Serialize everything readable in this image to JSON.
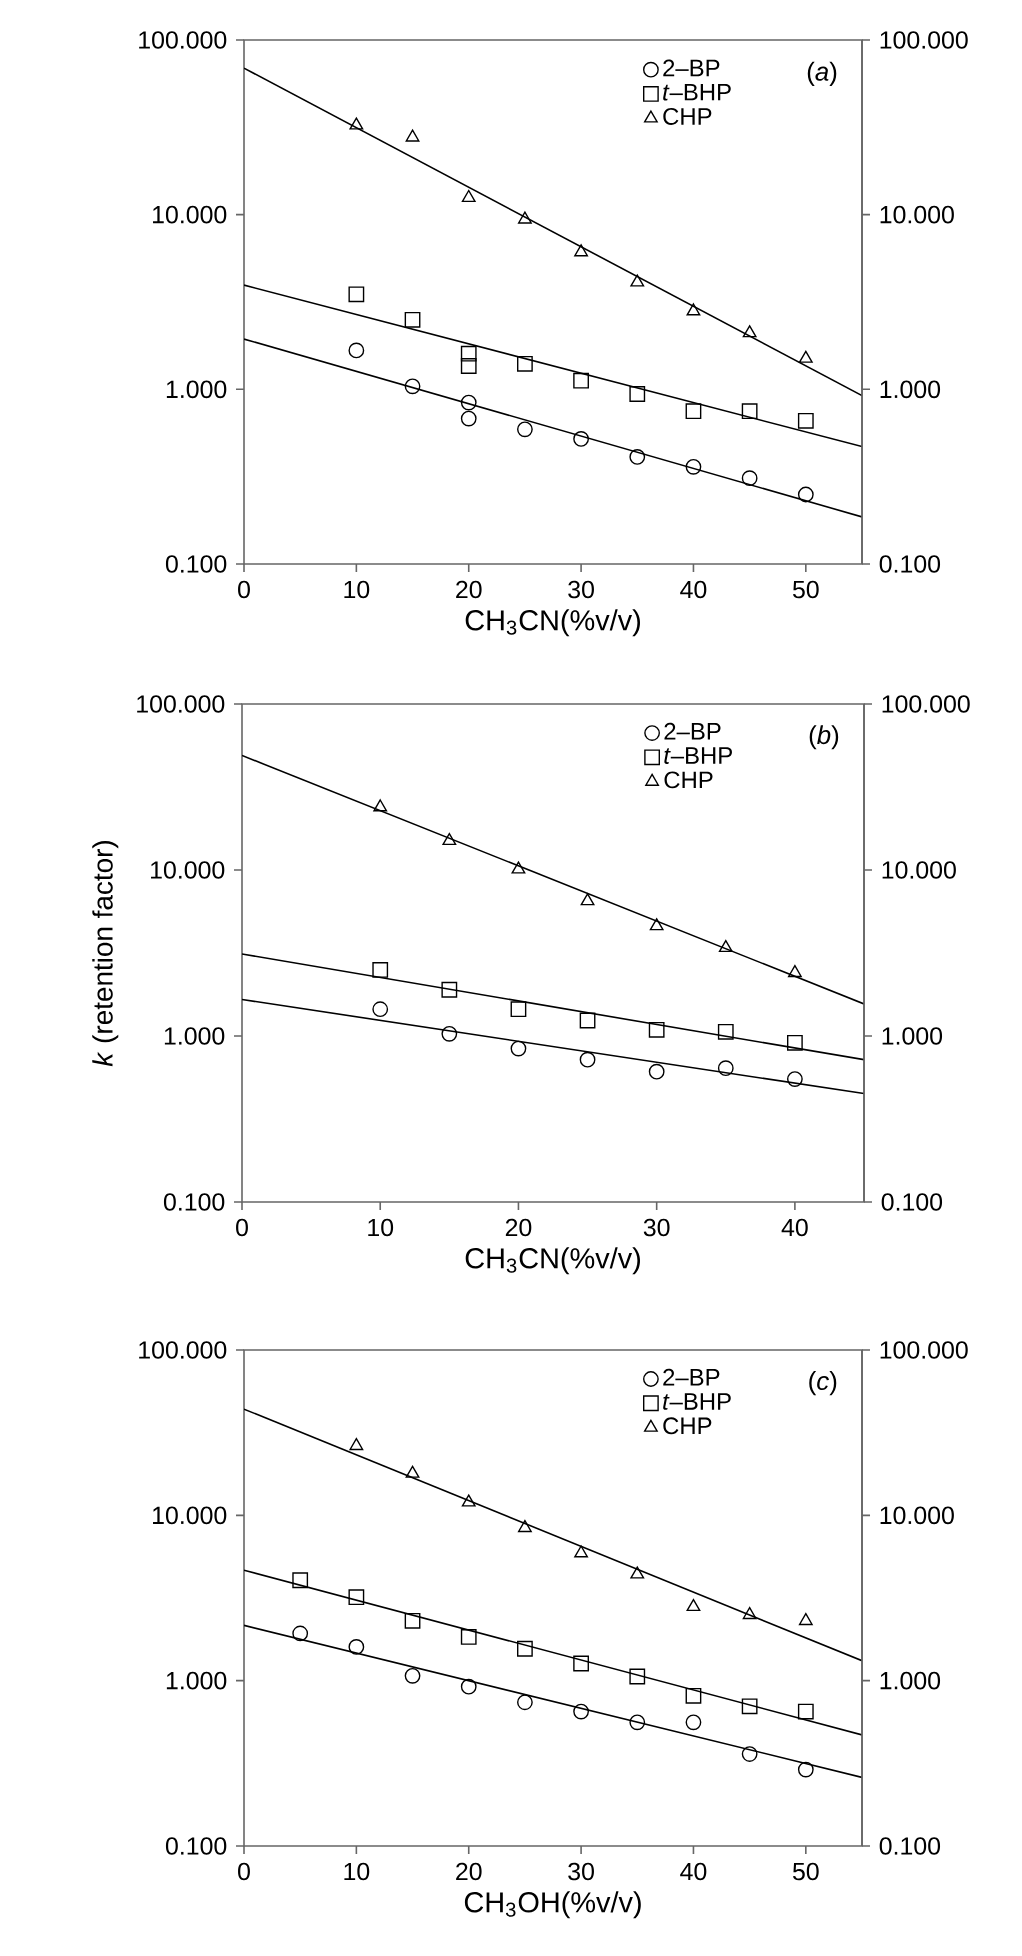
{
  "chart_data": [
    {
      "type": "scatter",
      "xlabel": "CH$_{3}$CN(%v/v)",
      "annotations": [
        "(*a*)"
      ],
      "log": true,
      "legend": "top right",
      "xlim": [
        0,
        55
      ],
      "xticks": [
        0,
        10,
        20,
        30,
        40,
        50
      ],
      "ylim": [
        0.1,
        100
      ],
      "yticks": [
        {
          "value": 0.1,
          "label": "0.100"
        },
        {
          "value": 1,
          "label": "1.000"
        },
        {
          "value": 10,
          "label": "10.000"
        },
        {
          "value": 100,
          "label": "100.000"
        }
      ],
      "series": [
        {
          "name": "2–BP",
          "color": "#000000",
          "marker": "circle",
          "x": [
            10,
            15,
            20,
            20,
            25,
            30,
            35,
            40,
            45,
            50
          ],
          "values": [
            1.67,
            1.04,
            0.84,
            0.68,
            0.59,
            0.52,
            0.41,
            0.36,
            0.31,
            0.25
          ]
        },
        {
          "name": "*t*–BHP",
          "color": "#000000",
          "marker": "square",
          "x": [
            10,
            15,
            20,
            20,
            25,
            30,
            35,
            40,
            45,
            50
          ],
          "values": [
            3.5,
            2.5,
            1.6,
            1.36,
            1.4,
            1.12,
            0.94,
            0.75,
            0.75,
            0.66
          ]
        },
        {
          "name": "CHP",
          "color": "#000000",
          "marker": "triangle",
          "x": [
            10,
            15,
            20,
            25,
            30,
            35,
            40,
            45,
            50
          ],
          "values": [
            32.5,
            27.7,
            12.5,
            9.4,
            6.1,
            4.1,
            2.8,
            2.1,
            1.5
          ]
        },
        {
          "type": "line",
          "color": "#000000",
          "marker": "none",
          "x": [
            0,
            55
          ],
          "values": [
            1.94,
            0.186
          ]
        },
        {
          "type": "line",
          "color": "#000000",
          "marker": "none",
          "x": [
            0,
            55
          ],
          "values": [
            3.95,
            0.47
          ]
        },
        {
          "type": "line",
          "color": "#000000",
          "marker": "none",
          "x": [
            0,
            55
          ],
          "values": [
            69,
            0.92
          ]
        }
      ]
    },
    {
      "type": "scatter",
      "xlabel": "CH$_{3}$CN(%v/v)",
      "ylabel": "*k* (retention factor)",
      "annotations": [
        "(*b*)"
      ],
      "log": true,
      "legend": "top right",
      "xlim": [
        0,
        45
      ],
      "xticks": [
        0,
        10,
        20,
        30,
        40
      ],
      "ylim": [
        0.1,
        100
      ],
      "yticks": [
        {
          "value": 0.1,
          "label": "0.100"
        },
        {
          "value": 1,
          "label": "1.000"
        },
        {
          "value": 10,
          "label": "10.000"
        },
        {
          "value": 100,
          "label": "100.000"
        }
      ],
      "series": [
        {
          "name": "2–BP",
          "color": "#000000",
          "marker": "circle",
          "x": [
            10,
            15,
            20,
            25,
            30,
            35,
            40
          ],
          "values": [
            1.45,
            1.03,
            0.84,
            0.72,
            0.61,
            0.64,
            0.55
          ]
        },
        {
          "name": "*t*–BHP",
          "color": "#000000",
          "marker": "square",
          "x": [
            10,
            15,
            20,
            25,
            30,
            35,
            40
          ],
          "values": [
            2.5,
            1.9,
            1.45,
            1.24,
            1.09,
            1.06,
            0.91
          ]
        },
        {
          "name": "CHP",
          "color": "#000000",
          "marker": "triangle",
          "x": [
            10,
            15,
            20,
            25,
            30,
            35,
            40
          ],
          "values": [
            23.9,
            15,
            10.1,
            6.5,
            4.6,
            3.4,
            2.4
          ]
        },
        {
          "type": "line",
          "color": "#000000",
          "marker": "none",
          "x": [
            0,
            45
          ],
          "values": [
            1.66,
            0.45
          ]
        },
        {
          "type": "line",
          "color": "#000000",
          "marker": "none",
          "x": [
            0,
            45
          ],
          "values": [
            3.12,
            0.72
          ]
        },
        {
          "type": "line",
          "color": "#000000",
          "marker": "none",
          "x": [
            0,
            45
          ],
          "values": [
            49,
            1.56
          ]
        }
      ]
    },
    {
      "type": "scatter",
      "xlabel": "CH$_{3}$OH(%v/v)",
      "annotations": [
        "(*c*)"
      ],
      "log": true,
      "legend": "top right",
      "xlim": [
        0,
        55
      ],
      "xticks": [
        0,
        10,
        20,
        30,
        40,
        50
      ],
      "ylim": [
        0.1,
        100
      ],
      "yticks": [
        {
          "value": 0.1,
          "label": "0.100"
        },
        {
          "value": 1,
          "label": "1.000"
        },
        {
          "value": 10,
          "label": "10.000"
        },
        {
          "value": 100,
          "label": "100.000"
        }
      ],
      "series": [
        {
          "name": "2–BP",
          "color": "#000000",
          "marker": "circle",
          "x": [
            5,
            10,
            15,
            20,
            25,
            30,
            35,
            40,
            45,
            50
          ],
          "values": [
            1.93,
            1.6,
            1.07,
            0.92,
            0.74,
            0.65,
            0.56,
            0.56,
            0.36,
            0.29
          ]
        },
        {
          "name": "*t*–BHP",
          "color": "#000000",
          "marker": "square",
          "x": [
            5,
            10,
            15,
            20,
            25,
            30,
            35,
            40,
            45,
            50
          ],
          "values": [
            4.05,
            3.2,
            2.3,
            1.84,
            1.56,
            1.27,
            1.06,
            0.81,
            0.7,
            0.65
          ]
        },
        {
          "name": "CHP",
          "color": "#000000",
          "marker": "triangle",
          "x": [
            10,
            15,
            20,
            25,
            30,
            35,
            40,
            45,
            50
          ],
          "values": [
            26.3,
            17.9,
            12,
            8.4,
            5.9,
            4.4,
            2.8,
            2.5,
            2.3
          ]
        },
        {
          "type": "line",
          "color": "#000000",
          "marker": "none",
          "x": [
            0,
            55
          ],
          "values": [
            2.16,
            0.26
          ]
        },
        {
          "type": "line",
          "color": "#000000",
          "marker": "none",
          "x": [
            0,
            55
          ],
          "values": [
            4.66,
            0.47
          ]
        },
        {
          "type": "line",
          "color": "#000000",
          "marker": "none",
          "x": [
            0,
            55
          ],
          "values": [
            43.9,
            1.32
          ]
        }
      ]
    }
  ]
}
